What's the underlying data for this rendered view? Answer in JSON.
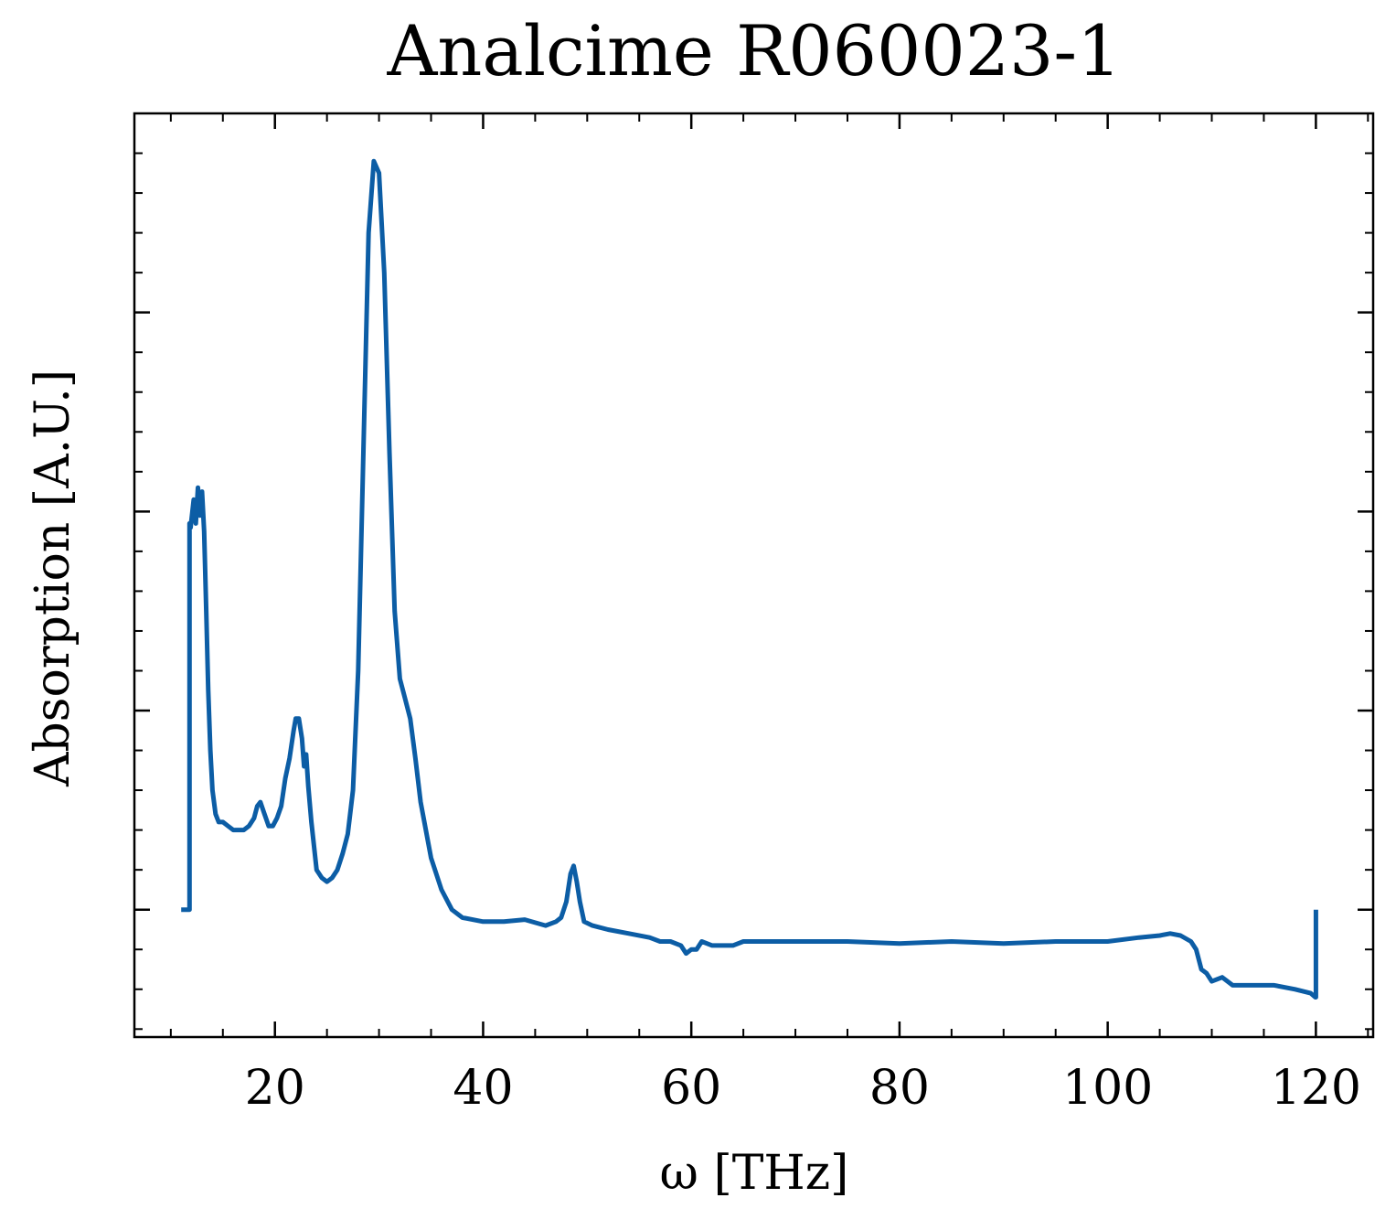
{
  "chart_data": {
    "type": "line",
    "title": "Analcime R060023-1",
    "xlabel": "ω [THz]",
    "ylabel": "Absorption [A.U.]",
    "xlim": [
      6.5,
      125.5
    ],
    "ylim": [
      -0.32,
      2.0
    ],
    "x_ticks": [
      20,
      40,
      60,
      80,
      100,
      120
    ],
    "x_minor_step": 5,
    "y_major_ticks": [
      0,
      0.5,
      1.0,
      1.5
    ],
    "y_minor_step": 0.1,
    "y_tick_labels_shown": false,
    "grid": false,
    "line_color": "#0c5da5",
    "series": [
      {
        "x": [
          11.0,
          11.8,
          11.8,
          11.9,
          12.2,
          12.4,
          12.6,
          12.8,
          13.0,
          13.2,
          13.4,
          13.6,
          13.8,
          14.0,
          14.3,
          14.6,
          15.0,
          15.5,
          16.0,
          16.5,
          17.0,
          17.5,
          18.0,
          18.3,
          18.6,
          19.0,
          19.4,
          19.8,
          20.2,
          20.6,
          21.0,
          21.4,
          21.8,
          22.0,
          22.3,
          22.6,
          22.8,
          23.0,
          23.2,
          23.5,
          24.0,
          24.5,
          25.0,
          25.5,
          26.0,
          26.5,
          27.0,
          27.5,
          28.0,
          28.5,
          29.0,
          29.5,
          30.0,
          30.5,
          31.0,
          31.5,
          32.0,
          32.5,
          33.0,
          33.5,
          34.0,
          35.0,
          36.0,
          37.0,
          38.0,
          40.0,
          42.0,
          44.0,
          46.0,
          47.0,
          47.5,
          48.0,
          48.4,
          48.7,
          49.0,
          49.3,
          49.7,
          50.5,
          52.0,
          54.0,
          56.0,
          57.0,
          58.0,
          59.0,
          59.5,
          60.0,
          60.5,
          61.0,
          62.0,
          63.0,
          64.0,
          65.0,
          66.0,
          70.0,
          75.0,
          80.0,
          85.0,
          90.0,
          95.0,
          100.0,
          103.0,
          105.0,
          106.0,
          107.0,
          108.0,
          108.5,
          109.0,
          109.5,
          110.0,
          111.0,
          112.0,
          114.0,
          116.0,
          118.0,
          119.5,
          119.95,
          120.0,
          120.0
        ],
        "y": [
          0.0,
          0.0,
          0.97,
          0.96,
          1.03,
          0.97,
          1.06,
          0.99,
          1.05,
          0.95,
          0.75,
          0.55,
          0.4,
          0.3,
          0.24,
          0.22,
          0.22,
          0.21,
          0.2,
          0.2,
          0.2,
          0.21,
          0.23,
          0.26,
          0.27,
          0.24,
          0.21,
          0.21,
          0.23,
          0.26,
          0.33,
          0.38,
          0.45,
          0.48,
          0.48,
          0.43,
          0.36,
          0.39,
          0.31,
          0.22,
          0.1,
          0.08,
          0.07,
          0.08,
          0.1,
          0.14,
          0.19,
          0.3,
          0.6,
          1.15,
          1.7,
          1.88,
          1.85,
          1.6,
          1.15,
          0.75,
          0.58,
          0.53,
          0.48,
          0.38,
          0.27,
          0.13,
          0.05,
          0.0,
          -0.02,
          -0.03,
          -0.03,
          -0.025,
          -0.04,
          -0.03,
          -0.02,
          0.02,
          0.09,
          0.11,
          0.07,
          0.02,
          -0.03,
          -0.04,
          -0.05,
          -0.06,
          -0.07,
          -0.08,
          -0.08,
          -0.09,
          -0.11,
          -0.1,
          -0.1,
          -0.08,
          -0.09,
          -0.09,
          -0.09,
          -0.08,
          -0.08,
          -0.08,
          -0.08,
          -0.085,
          -0.08,
          -0.085,
          -0.08,
          -0.08,
          -0.07,
          -0.065,
          -0.06,
          -0.065,
          -0.08,
          -0.1,
          -0.15,
          -0.16,
          -0.18,
          -0.17,
          -0.19,
          -0.19,
          -0.19,
          -0.2,
          -0.21,
          -0.22,
          -0.22,
          0.0
        ]
      }
    ]
  }
}
